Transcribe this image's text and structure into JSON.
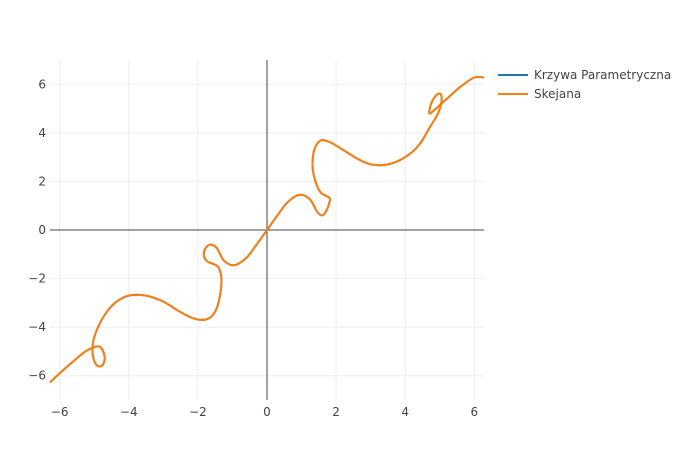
{
  "chart_data": {
    "type": "line",
    "title": "",
    "xlabel": "",
    "ylabel": "",
    "xlim": [
      -6.28,
      6.28
    ],
    "ylim": [
      -7.0,
      7.0
    ],
    "xticks": [
      -6,
      -4,
      -2,
      0,
      2,
      4,
      6
    ],
    "yticks": [
      -6,
      -4,
      -2,
      0,
      2,
      4,
      6
    ],
    "grid": true,
    "zero_lines": true,
    "legend_position": "top-right",
    "series": [
      {
        "name": "Krzywa Parametryczna",
        "color": "#1f77b4",
        "x": [
          -6.28,
          -6,
          -5.6,
          -5.2,
          -4.85,
          -4.7,
          -4.75,
          -4.9,
          -5.02,
          -5.05,
          -4.95,
          -4.7,
          -4.4,
          -4,
          -3.5,
          -3,
          -2.6,
          -2.2,
          -1.85,
          -1.6,
          -1.45,
          -1.35,
          -1.32,
          -1.4,
          -1.55,
          -1.72,
          -1.82,
          -1.8,
          -1.65,
          -1.45,
          -1.25,
          -0.95,
          -0.6,
          -0.3,
          0,
          0.3,
          0.6,
          0.95,
          1.25,
          1.45,
          1.6,
          1.72,
          1.8,
          1.82,
          1.72,
          1.55,
          1.4,
          1.32,
          1.35,
          1.45,
          1.6,
          1.85,
          2.2,
          2.6,
          3,
          3.5,
          4,
          4.4,
          4.7,
          4.95,
          5.05,
          5.02,
          4.9,
          4.75,
          4.7,
          4.85,
          5.2,
          5.6,
          6,
          6.28
        ],
        "y": [
          -6.28,
          -5.9,
          -5.4,
          -4.95,
          -4.8,
          -5.2,
          -5.55,
          -5.6,
          -5.3,
          -4.8,
          -4.2,
          -3.5,
          -3,
          -2.7,
          -2.7,
          -2.95,
          -3.3,
          -3.6,
          -3.7,
          -3.55,
          -3.2,
          -2.6,
          -2,
          -1.55,
          -1.4,
          -1.3,
          -1.1,
          -0.8,
          -0.6,
          -0.75,
          -1.25,
          -1.45,
          -1.15,
          -0.6,
          0,
          0.6,
          1.15,
          1.45,
          1.25,
          0.75,
          0.6,
          0.8,
          1.1,
          1.3,
          1.4,
          1.55,
          2,
          2.6,
          3.2,
          3.55,
          3.7,
          3.6,
          3.3,
          2.95,
          2.7,
          2.7,
          3,
          3.5,
          4.2,
          4.8,
          5.3,
          5.6,
          5.55,
          5.2,
          4.8,
          4.95,
          5.4,
          5.9,
          6.28,
          6.28
        ]
      },
      {
        "name": "Skejana",
        "color": "#ff7f0e",
        "x": [
          -6.28,
          -6,
          -5.6,
          -5.2,
          -4.85,
          -4.7,
          -4.75,
          -4.9,
          -5.02,
          -5.05,
          -4.95,
          -4.7,
          -4.4,
          -4,
          -3.5,
          -3,
          -2.6,
          -2.2,
          -1.85,
          -1.6,
          -1.45,
          -1.35,
          -1.32,
          -1.4,
          -1.55,
          -1.72,
          -1.82,
          -1.8,
          -1.65,
          -1.45,
          -1.25,
          -0.95,
          -0.6,
          -0.3,
          0,
          0.3,
          0.6,
          0.95,
          1.25,
          1.45,
          1.6,
          1.72,
          1.8,
          1.82,
          1.72,
          1.55,
          1.4,
          1.32,
          1.35,
          1.45,
          1.6,
          1.85,
          2.2,
          2.6,
          3,
          3.5,
          4,
          4.4,
          4.7,
          4.95,
          5.05,
          5.02,
          4.9,
          4.75,
          4.7,
          4.85,
          5.2,
          5.6,
          6,
          6.28
        ],
        "y": [
          -6.28,
          -5.9,
          -5.4,
          -4.95,
          -4.8,
          -5.2,
          -5.55,
          -5.6,
          -5.3,
          -4.8,
          -4.2,
          -3.5,
          -3,
          -2.7,
          -2.7,
          -2.95,
          -3.3,
          -3.6,
          -3.7,
          -3.55,
          -3.2,
          -2.6,
          -2,
          -1.55,
          -1.4,
          -1.3,
          -1.1,
          -0.8,
          -0.6,
          -0.75,
          -1.25,
          -1.45,
          -1.15,
          -0.6,
          0,
          0.6,
          1.15,
          1.45,
          1.25,
          0.75,
          0.6,
          0.8,
          1.1,
          1.3,
          1.4,
          1.55,
          2,
          2.6,
          3.2,
          3.55,
          3.7,
          3.6,
          3.3,
          2.95,
          2.7,
          2.7,
          3,
          3.5,
          4.2,
          4.8,
          5.3,
          5.6,
          5.55,
          5.2,
          4.8,
          4.95,
          5.4,
          5.9,
          6.28,
          6.28
        ]
      }
    ]
  }
}
